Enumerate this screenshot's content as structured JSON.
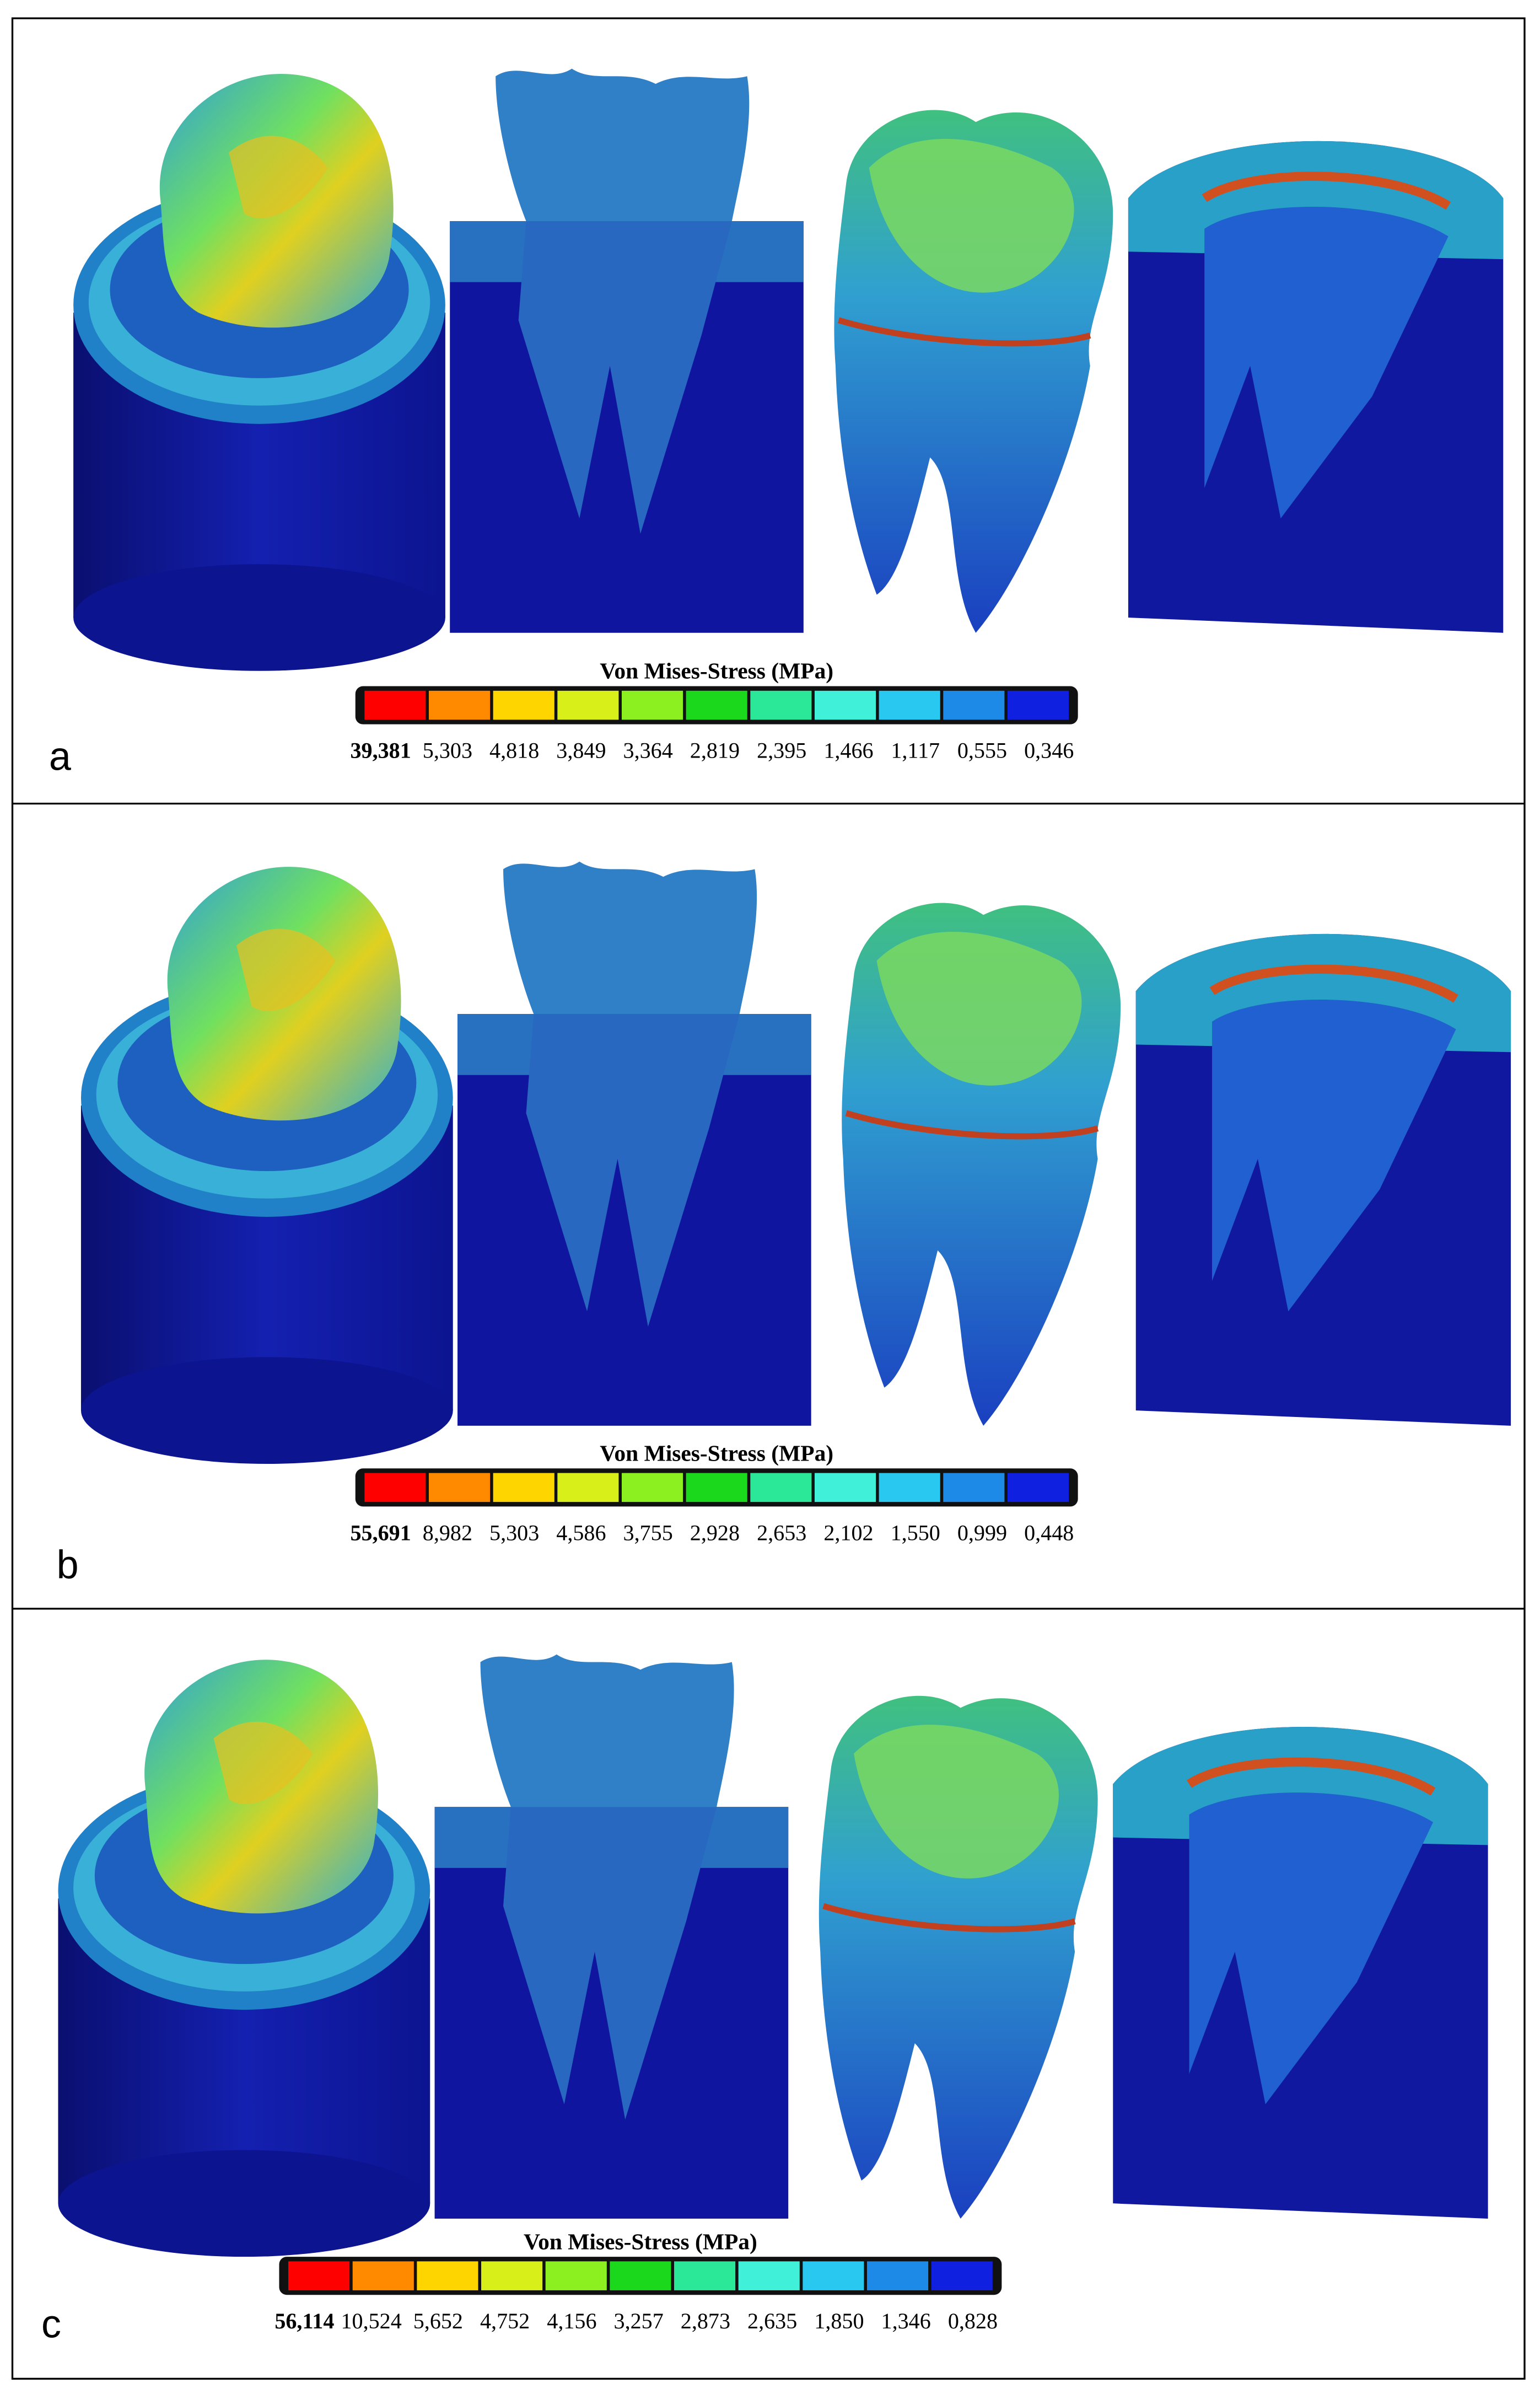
{
  "legend_colors": [
    "#ff0000",
    "#ff8a00",
    "#ffd500",
    "#d8ef1a",
    "#8cf020",
    "#1cd81c",
    "#2be898",
    "#40f0d8",
    "#28c8f0",
    "#1e8ae8",
    "#1020e0"
  ],
  "panels": [
    {
      "label": "a",
      "legend_title": "Von Mises-Stress (MPa)",
      "values": [
        "39,381",
        "5,303",
        "4,818",
        "3,849",
        "3,364",
        "2,819",
        "2,395",
        "1,466",
        "1,117",
        "0,555",
        "0,346"
      ]
    },
    {
      "label": "b",
      "legend_title": "Von Mises-Stress (MPa)",
      "values": [
        "55,691",
        "8,982",
        "5,303",
        "4,586",
        "3,755",
        "2,928",
        "2,653",
        "2,102",
        "1,550",
        "0,999",
        "0,448"
      ]
    },
    {
      "label": "c",
      "legend_title": "Von Mises-Stress (MPa)",
      "values": [
        "56,114",
        "10,524",
        "5,652",
        "4,752",
        "4,156",
        "3,257",
        "2,873",
        "2,635",
        "1,850",
        "1,346",
        "0,828"
      ]
    }
  ]
}
